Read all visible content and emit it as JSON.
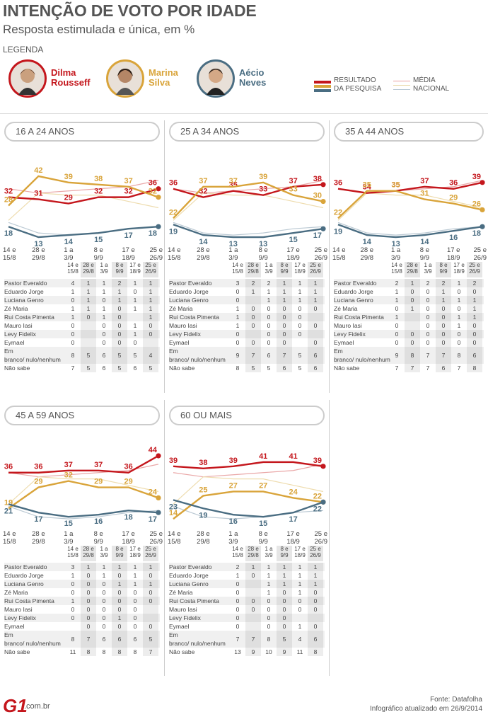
{
  "header": {
    "title": "INTENÇÃO DE VOTO POR IDADE",
    "subtitle": "Resposta estimulada e única, em %",
    "legend_label": "LEGENDA"
  },
  "candidates": [
    {
      "name1": "Dilma",
      "name2": "Rousseff",
      "color": "#c4161c"
    },
    {
      "name1": "Marina",
      "name2": "Silva",
      "color": "#d9a43a"
    },
    {
      "name1": "Aécio",
      "name2": "Neves",
      "color": "#4a6d82"
    }
  ],
  "legend": {
    "result": "RESULTADO",
    "result2": "DA PESQUISA",
    "media": "MÉDIA",
    "media2": "NACIONAL"
  },
  "dates": [
    "14 e 15/8",
    "28 e 29/8",
    "1 a 3/9",
    "8 e 9/9",
    "17 e 18/9",
    "25 e 26/9"
  ],
  "date_lines": [
    [
      "14 e",
      "15/8"
    ],
    [
      "28 e",
      "29/8"
    ],
    [
      "1 a",
      "3/9"
    ],
    [
      "8 e",
      "9/9"
    ],
    [
      "17 e",
      "18/9"
    ],
    [
      "25 e",
      "26/9"
    ]
  ],
  "table_rows": [
    "Pastor Everaldo",
    "Eduardo Jorge",
    "Luciana Genro",
    "Zé Maria",
    "Rui Costa Pimenta",
    "Mauro Iasi",
    "Levy Fidelix",
    "Eymael",
    "Em branco/ nulo/nenhum",
    "Não sabe"
  ],
  "national_average": {
    "dilma": [
      36,
      34,
      35,
      36,
      37,
      40
    ],
    "marina": [
      21,
      34,
      33,
      33,
      30,
      27
    ],
    "aecio": [
      20,
      15,
      14,
      15,
      17,
      18
    ]
  },
  "chart_data": [
    {
      "type": "line",
      "title": "16 A 24 ANOS",
      "categories": [
        "14 e 15/8",
        "28 e 29/8",
        "1 a 3/9",
        "8 e 9/9",
        "17 e 18/9",
        "25 e 26/9"
      ],
      "series": [
        {
          "name": "Dilma Rousseff",
          "values": [
            32,
            31,
            29,
            32,
            32,
            36
          ]
        },
        {
          "name": "Marina Silva",
          "values": [
            28,
            42,
            39,
            38,
            37,
            32
          ]
        },
        {
          "name": "Aécio Neves",
          "values": [
            18,
            13,
            14,
            15,
            17,
            18
          ]
        }
      ],
      "table": [
        [
          4,
          1,
          1,
          2,
          1,
          1
        ],
        [
          1,
          1,
          1,
          1,
          0,
          1
        ],
        [
          0,
          1,
          0,
          1,
          1,
          1
        ],
        [
          1,
          1,
          1,
          0,
          1,
          1
        ],
        [
          1,
          0,
          1,
          0,
          "",
          1
        ],
        [
          0,
          "",
          0,
          0,
          1,
          0
        ],
        [
          0,
          "",
          0,
          0,
          1,
          0
        ],
        [
          0,
          "",
          0,
          0,
          0,
          ""
        ],
        [
          8,
          5,
          6,
          5,
          5,
          4
        ],
        [
          7,
          5,
          6,
          5,
          6,
          5
        ]
      ]
    },
    {
      "type": "line",
      "title": "25 A 34 ANOS",
      "categories": [
        "14 e 15/8",
        "28 e 29/8",
        "1 a 3/9",
        "8 e 9/9",
        "17 e 18/9",
        "25 e 26/9"
      ],
      "series": [
        {
          "name": "Dilma Rousseff",
          "values": [
            36,
            32,
            35,
            33,
            37,
            38
          ]
        },
        {
          "name": "Marina Silva",
          "values": [
            22,
            37,
            37,
            39,
            33,
            30
          ]
        },
        {
          "name": "Aécio Neves",
          "values": [
            19,
            14,
            13,
            13,
            15,
            17
          ]
        }
      ],
      "table": [
        [
          3,
          2,
          2,
          1,
          1,
          1
        ],
        [
          0,
          1,
          1,
          1,
          1,
          1
        ],
        [
          0,
          "",
          1,
          1,
          1,
          1
        ],
        [
          1,
          0,
          0,
          0,
          0,
          0
        ],
        [
          1,
          0,
          0,
          0,
          0,
          ""
        ],
        [
          1,
          0,
          0,
          0,
          0,
          0
        ],
        [
          0,
          "",
          0,
          0,
          0,
          ""
        ],
        [
          0,
          0,
          0,
          0,
          "",
          0
        ],
        [
          9,
          7,
          6,
          7,
          5,
          6
        ],
        [
          8,
          5,
          5,
          6,
          5,
          6
        ]
      ]
    },
    {
      "type": "line",
      "title": "35 A 44 ANOS",
      "categories": [
        "14 e 15/8",
        "28 e 29/8",
        "1 a 3/9",
        "8 e 9/9",
        "17 e 18/9",
        "25 e 26/9"
      ],
      "series": [
        {
          "name": "Dilma Rousseff",
          "values": [
            36,
            34,
            35,
            37,
            36,
            39
          ]
        },
        {
          "name": "Marina Silva",
          "values": [
            22,
            35,
            35,
            31,
            29,
            26
          ]
        },
        {
          "name": "Aécio Neves",
          "values": [
            19,
            14,
            13,
            14,
            16,
            18
          ]
        }
      ],
      "table": [
        [
          2,
          1,
          2,
          2,
          1,
          2
        ],
        [
          1,
          0,
          0,
          1,
          0,
          0
        ],
        [
          1,
          0,
          0,
          1,
          1,
          1
        ],
        [
          0,
          1,
          0,
          0,
          0,
          1
        ],
        [
          1,
          "",
          0,
          0,
          1,
          1
        ],
        [
          0,
          "",
          0,
          0,
          1,
          0
        ],
        [
          0,
          0,
          0,
          0,
          0,
          0
        ],
        [
          0,
          0,
          0,
          0,
          0,
          0
        ],
        [
          9,
          8,
          7,
          7,
          8,
          6
        ],
        [
          7,
          7,
          7,
          6,
          7,
          8
        ]
      ]
    },
    {
      "type": "line",
      "title": "45 A 59 ANOS",
      "categories": [
        "14 e 15/8",
        "28 e 29/8",
        "1 a 3/9",
        "8 e 9/9",
        "17 e 18/9",
        "25 e 26/9"
      ],
      "series": [
        {
          "name": "Dilma Rousseff",
          "values": [
            36,
            36,
            37,
            37,
            36,
            44
          ]
        },
        {
          "name": "Marina Silva",
          "values": [
            19,
            29,
            32,
            29,
            29,
            24
          ]
        },
        {
          "name": "Aécio Neves",
          "values": [
            21,
            17,
            15,
            16,
            18,
            17
          ]
        }
      ],
      "table": [
        [
          3,
          1,
          1,
          1,
          1,
          1
        ],
        [
          1,
          0,
          1,
          0,
          1,
          0
        ],
        [
          0,
          0,
          0,
          1,
          1,
          1
        ],
        [
          0,
          0,
          0,
          0,
          0,
          0
        ],
        [
          1,
          0,
          0,
          0,
          0,
          0
        ],
        [
          0,
          0,
          0,
          0,
          0,
          ""
        ],
        [
          0,
          0,
          0,
          1,
          0,
          ""
        ],
        [
          "",
          0,
          0,
          0,
          0,
          0
        ],
        [
          8,
          7,
          6,
          6,
          6,
          5
        ],
        [
          11,
          8,
          8,
          8,
          8,
          7
        ]
      ]
    },
    {
      "type": "line",
      "title": "60 OU MAIS",
      "categories": [
        "14 e 15/8",
        "28 e 29/8",
        "1 a 3/9",
        "8 e 9/9",
        "17 e 18/9",
        "25 e 26/9"
      ],
      "series": [
        {
          "name": "Dilma Rousseff",
          "values": [
            39,
            38,
            39,
            41,
            41,
            39
          ]
        },
        {
          "name": "Marina Silva",
          "values": [
            14,
            25,
            27,
            27,
            24,
            22
          ]
        },
        {
          "name": "Aécio Neves",
          "values": [
            23,
            19,
            16,
            15,
            17,
            22
          ]
        }
      ],
      "table": [
        [
          2,
          1,
          1,
          1,
          1,
          1
        ],
        [
          1,
          0,
          1,
          1,
          1,
          1
        ],
        [
          0,
          "",
          1,
          1,
          1,
          1
        ],
        [
          0,
          "",
          1,
          0,
          1,
          0
        ],
        [
          0,
          0,
          0,
          0,
          0,
          0
        ],
        [
          0,
          0,
          0,
          0,
          0,
          0
        ],
        [
          0,
          "",
          0,
          0,
          "",
          ""
        ],
        [
          0,
          "",
          0,
          0,
          1,
          0
        ],
        [
          7,
          7,
          8,
          5,
          4,
          6
        ],
        [
          13,
          9,
          10,
          9,
          11,
          8
        ]
      ]
    }
  ],
  "footer": {
    "source": "Fonte: Datafolha",
    "updated": "Infográfico atualizado em 26/9/2014",
    "logo": "G1",
    "domain": ".com.br"
  }
}
